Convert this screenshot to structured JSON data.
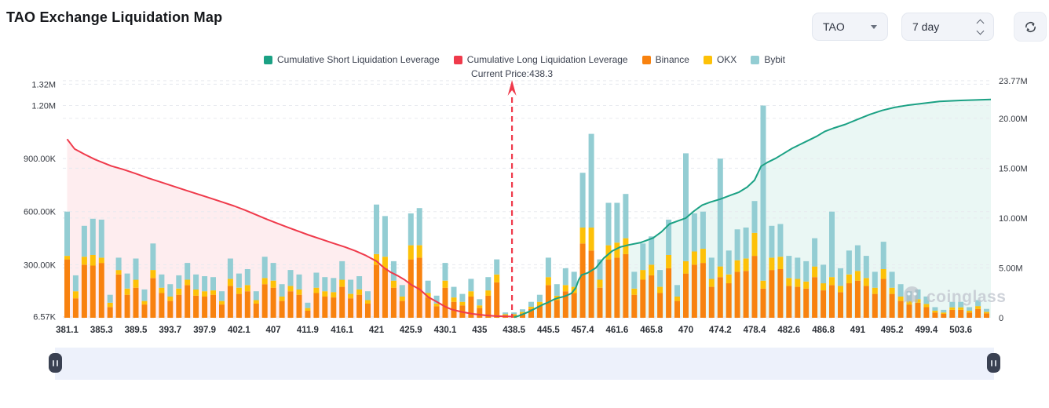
{
  "header": {
    "title": "TAO Exchange Liquidation Map"
  },
  "controls": {
    "symbol": "TAO",
    "period": "7 day"
  },
  "legend": {
    "items": [
      {
        "label": "Cumulative Short Liquidation Leverage",
        "color": "#1ba184"
      },
      {
        "label": "Cumulative Long Liquidation Leverage",
        "color": "#ef3a4b"
      },
      {
        "label": "Binance",
        "color": "#f8820f"
      },
      {
        "label": "OKX",
        "color": "#fdc108"
      },
      {
        "label": "Bybit",
        "color": "#93cdd3"
      }
    ]
  },
  "annotation": {
    "current_price_label": "Current Price:438.3",
    "current_price": 438.3
  },
  "watermark": {
    "text": "coinglass"
  },
  "chart_data": {
    "type": "bar",
    "subtype": "stacked-bars-with-cumulative-lines",
    "title": "TAO Exchange Liquidation Map",
    "xlabel": "Price",
    "x_labels": [
      "381.1",
      "385.3",
      "389.5",
      "393.7",
      "397.9",
      "402.1",
      "407",
      "411.9",
      "416.1",
      "421",
      "425.9",
      "430.1",
      "435",
      "438.5",
      "445.5",
      "457.4",
      "461.6",
      "465.8",
      "470",
      "474.2",
      "478.4",
      "482.6",
      "486.8",
      "491",
      "495.2",
      "499.4",
      "503.6"
    ],
    "bars_per_label": 4,
    "bar_stack_order": [
      "Binance",
      "OKX",
      "Bybit"
    ],
    "left_axis": {
      "unit": "K",
      "max": 1353,
      "ticks": [
        {
          "v": 6.57,
          "label": "6.57K"
        },
        {
          "v": 300,
          "label": "300.00K"
        },
        {
          "v": 600,
          "label": "600.00K"
        },
        {
          "v": 900,
          "label": "900.00K"
        },
        {
          "v": 1200,
          "label": "1.20M"
        },
        {
          "v": 1320,
          "label": "1.32M"
        }
      ]
    },
    "right_axis": {
      "unit": "M",
      "max": 24.0,
      "ticks": [
        {
          "v": 0,
          "label": "0"
        },
        {
          "v": 5,
          "label": "5.00M"
        },
        {
          "v": 10,
          "label": "10.00M"
        },
        {
          "v": 15,
          "label": "15.00M"
        },
        {
          "v": 20,
          "label": "20.00M"
        },
        {
          "v": 23.77,
          "label": "23.77M"
        }
      ]
    },
    "colors": {
      "binance": "#f8820f",
      "okx": "#fdc108",
      "bybit": "#93cdd3",
      "long": "#ef3a4b",
      "short": "#1ba184",
      "long_fill": "rgba(239,58,75,0.09)",
      "short_fill": "rgba(27,161,132,0.09)"
    },
    "current_price": 438.3,
    "bars_k": [
      [
        330,
        20,
        250
      ],
      [
        110,
        40,
        90
      ],
      [
        300,
        45,
        175
      ],
      [
        295,
        60,
        205
      ],
      [
        310,
        30,
        215
      ],
      [
        60,
        25,
        45
      ],
      [
        245,
        25,
        70
      ],
      [
        130,
        35,
        85
      ],
      [
        170,
        45,
        120
      ],
      [
        75,
        20,
        65
      ],
      [
        225,
        45,
        150
      ],
      [
        140,
        30,
        75
      ],
      [
        95,
        25,
        70
      ],
      [
        130,
        35,
        75
      ],
      [
        185,
        30,
        95
      ],
      [
        125,
        35,
        85
      ],
      [
        120,
        30,
        85
      ],
      [
        130,
        25,
        75
      ],
      [
        75,
        20,
        55
      ],
      [
        180,
        40,
        115
      ],
      [
        135,
        35,
        80
      ],
      [
        150,
        35,
        90
      ],
      [
        80,
        20,
        50
      ],
      [
        190,
        35,
        120
      ],
      [
        170,
        40,
        100
      ],
      [
        95,
        25,
        70
      ],
      [
        150,
        30,
        90
      ],
      [
        130,
        30,
        85
      ],
      [
        40,
        15,
        30
      ],
      [
        140,
        30,
        85
      ],
      [
        120,
        30,
        80
      ],
      [
        115,
        30,
        80
      ],
      [
        175,
        40,
        105
      ],
      [
        110,
        25,
        80
      ],
      [
        130,
        30,
        75
      ],
      [
        80,
        20,
        50
      ],
      [
        300,
        60,
        280
      ],
      [
        280,
        65,
        230
      ],
      [
        170,
        40,
        110
      ],
      [
        95,
        25,
        65
      ],
      [
        330,
        80,
        180
      ],
      [
        340,
        70,
        210
      ],
      [
        115,
        25,
        70
      ],
      [
        65,
        15,
        45
      ],
      [
        170,
        40,
        100
      ],
      [
        90,
        25,
        60
      ],
      [
        70,
        20,
        45
      ],
      [
        120,
        30,
        70
      ],
      [
        55,
        15,
        35
      ],
      [
        125,
        30,
        75
      ],
      [
        200,
        45,
        85
      ],
      [
        15,
        5,
        10
      ],
      [
        15,
        5,
        10
      ],
      [
        25,
        8,
        15
      ],
      [
        50,
        12,
        28
      ],
      [
        70,
        20,
        40
      ],
      [
        185,
        45,
        110
      ],
      [
        100,
        25,
        65
      ],
      [
        150,
        35,
        95
      ],
      [
        140,
        35,
        85
      ],
      [
        420,
        90,
        310
      ],
      [
        380,
        130,
        530
      ],
      [
        170,
        45,
        115
      ],
      [
        330,
        80,
        240
      ],
      [
        340,
        85,
        225
      ],
      [
        360,
        90,
        250
      ],
      [
        130,
        35,
        95
      ],
      [
        215,
        55,
        150
      ],
      [
        240,
        60,
        160
      ],
      [
        140,
        35,
        95
      ],
      [
        280,
        75,
        200
      ],
      [
        95,
        25,
        65
      ],
      [
        250,
        70,
        610
      ],
      [
        300,
        75,
        215
      ],
      [
        310,
        80,
        210
      ],
      [
        175,
        45,
        120
      ],
      [
        230,
        60,
        610
      ],
      [
        195,
        50,
        135
      ],
      [
        260,
        65,
        175
      ],
      [
        265,
        70,
        175
      ],
      [
        350,
        130,
        180
      ],
      [
        165,
        45,
        990
      ],
      [
        270,
        70,
        180
      ],
      [
        275,
        70,
        185
      ],
      [
        180,
        45,
        125
      ],
      [
        175,
        45,
        120
      ],
      [
        165,
        40,
        115
      ],
      [
        230,
        60,
        160
      ],
      [
        155,
        40,
        105
      ],
      [
        185,
        45,
        370
      ],
      [
        145,
        35,
        100
      ],
      [
        195,
        50,
        135
      ],
      [
        210,
        55,
        145
      ],
      [
        180,
        45,
        125
      ],
      [
        135,
        35,
        90
      ],
      [
        220,
        55,
        155
      ],
      [
        135,
        35,
        90
      ],
      [
        95,
        25,
        70
      ],
      [
        75,
        20,
        55
      ],
      [
        85,
        20,
        55
      ],
      [
        60,
        18,
        42
      ],
      [
        30,
        10,
        20
      ],
      [
        22,
        8,
        15
      ],
      [
        45,
        14,
        31
      ],
      [
        45,
        14,
        31
      ],
      [
        30,
        10,
        20
      ],
      [
        50,
        16,
        34
      ],
      [
        25,
        8,
        17
      ]
    ],
    "long_line_k": [
      [
        381.1,
        1010
      ],
      [
        382,
        955
      ],
      [
        383.2,
        925
      ],
      [
        384.5,
        895
      ],
      [
        385.3,
        880
      ],
      [
        386.5,
        858
      ],
      [
        388,
        838
      ],
      [
        389.5,
        815
      ],
      [
        391,
        790
      ],
      [
        392.5,
        768
      ],
      [
        394,
        745
      ],
      [
        395.5,
        722
      ],
      [
        397,
        700
      ],
      [
        398.5,
        678
      ],
      [
        400,
        655
      ],
      [
        401.5,
        632
      ],
      [
        403,
        608
      ],
      [
        404.5,
        583
      ],
      [
        406,
        558
      ],
      [
        407.5,
        535
      ],
      [
        409,
        512
      ],
      [
        410.5,
        490
      ],
      [
        412,
        468
      ],
      [
        413.5,
        445
      ],
      [
        415,
        422
      ],
      [
        416.5,
        400
      ],
      [
        418,
        378
      ],
      [
        419.5,
        352
      ],
      [
        421,
        320
      ],
      [
        422,
        285
      ],
      [
        423,
        258
      ],
      [
        424,
        238
      ],
      [
        425,
        215
      ],
      [
        426,
        185
      ],
      [
        427,
        160
      ],
      [
        428,
        118
      ],
      [
        429,
        92
      ],
      [
        430,
        65
      ],
      [
        431,
        47
      ],
      [
        432.5,
        33
      ],
      [
        434,
        22
      ],
      [
        435.5,
        14
      ],
      [
        436.8,
        9
      ],
      [
        438.3,
        7
      ]
    ],
    "short_line_m": [
      [
        438.5,
        0.05
      ],
      [
        439.5,
        0.2
      ],
      [
        440.5,
        0.4
      ],
      [
        441.5,
        0.6
      ],
      [
        442.5,
        0.85
      ],
      [
        443.5,
        1.1
      ],
      [
        444.5,
        1.35
      ],
      [
        445.5,
        1.55
      ],
      [
        446.5,
        1.7
      ],
      [
        447.5,
        1.85
      ],
      [
        449,
        2.0
      ],
      [
        450.5,
        2.1
      ],
      [
        452,
        2.25
      ],
      [
        453.5,
        2.45
      ],
      [
        455,
        3.0
      ],
      [
        456,
        3.8
      ],
      [
        457,
        4.3
      ],
      [
        458,
        4.5
      ],
      [
        459,
        5.0
      ],
      [
        460,
        6.0
      ],
      [
        461,
        6.7
      ],
      [
        462,
        7.1
      ],
      [
        463,
        7.3
      ],
      [
        464.5,
        7.55
      ],
      [
        466,
        8.0
      ],
      [
        467,
        8.6
      ],
      [
        468,
        9.4
      ],
      [
        469,
        9.7
      ],
      [
        470,
        10.0
      ],
      [
        471,
        10.7
      ],
      [
        472,
        11.3
      ],
      [
        473,
        11.6
      ],
      [
        474.2,
        11.9
      ],
      [
        475.5,
        12.3
      ],
      [
        476.5,
        12.6
      ],
      [
        477.5,
        13.1
      ],
      [
        478.4,
        13.8
      ],
      [
        479.2,
        15.2
      ],
      [
        480,
        15.6
      ],
      [
        481,
        16.0
      ],
      [
        482,
        16.5
      ],
      [
        483,
        17.0
      ],
      [
        484,
        17.4
      ],
      [
        485,
        17.8
      ],
      [
        486,
        18.2
      ],
      [
        487,
        18.7
      ],
      [
        488,
        19.0
      ],
      [
        489.5,
        19.4
      ],
      [
        491,
        19.9
      ],
      [
        492.5,
        20.4
      ],
      [
        494,
        20.8
      ],
      [
        495.5,
        21.1
      ],
      [
        497,
        21.3
      ],
      [
        499,
        21.5
      ],
      [
        501,
        21.7
      ],
      [
        503.6,
        21.8
      ],
      [
        507.5,
        21.9
      ]
    ]
  }
}
